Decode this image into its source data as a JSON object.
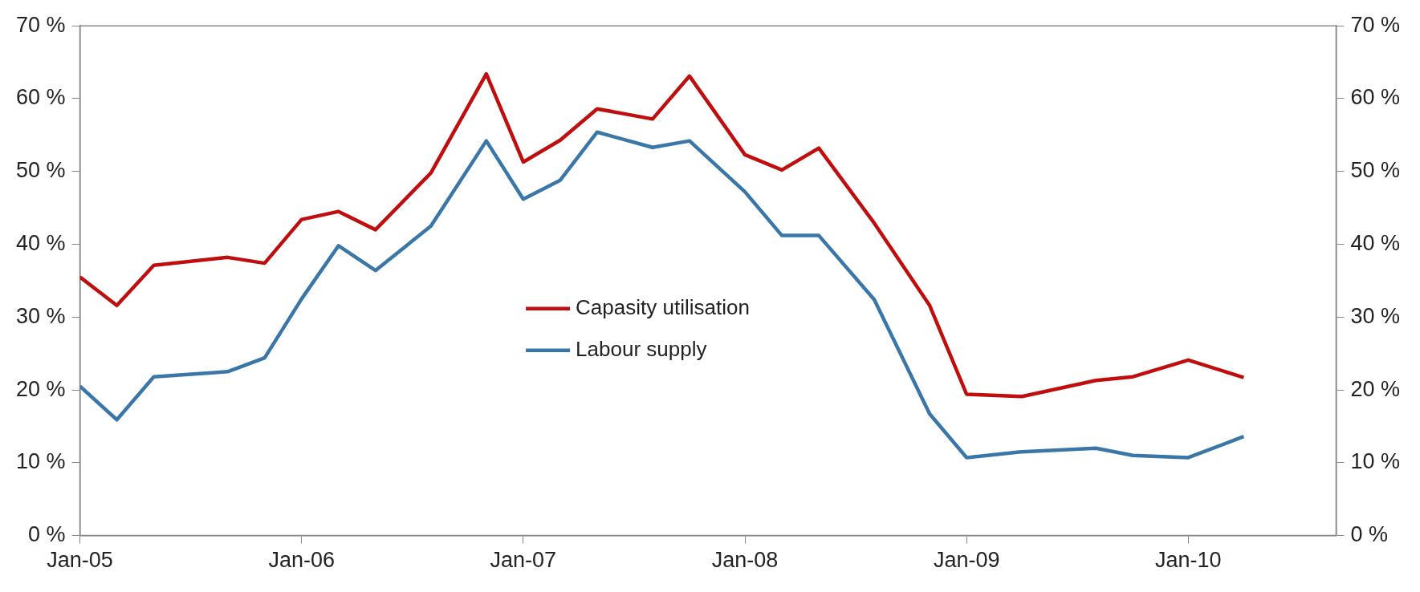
{
  "chart_data": {
    "type": "line",
    "x": [
      "2005-01",
      "2005-03",
      "2005-05",
      "2005-09",
      "2005-11",
      "2006-01",
      "2006-03",
      "2006-05",
      "2006-08",
      "2006-11",
      "2007-01",
      "2007-03",
      "2007-05",
      "2007-08",
      "2007-10",
      "2008-01",
      "2008-03",
      "2008-05",
      "2008-08",
      "2008-11",
      "2009-01",
      "2009-04",
      "2009-08",
      "2009-10",
      "2010-01",
      "2010-04"
    ],
    "series": [
      {
        "name": "Capasity utilisation",
        "color": "#c00d0d",
        "values": [
          35.5,
          31.6,
          37.1,
          38.2,
          37.4,
          43.4,
          44.5,
          42.0,
          49.8,
          63.4,
          51.3,
          54.3,
          58.6,
          57.2,
          63.1,
          52.3,
          50.2,
          53.2,
          42.9,
          31.6,
          19.4,
          19.1,
          21.3,
          21.8,
          24.1,
          21.7
        ]
      },
      {
        "name": "Labour supply",
        "color": "#3a76a8",
        "values": [
          20.5,
          15.9,
          21.8,
          22.5,
          24.4,
          32.5,
          39.8,
          36.4,
          42.5,
          54.2,
          46.2,
          48.8,
          55.4,
          53.3,
          54.2,
          47.2,
          41.2,
          41.2,
          32.4,
          16.7,
          10.7,
          11.5,
          12.0,
          11.0,
          10.7,
          13.6
        ]
      }
    ],
    "xlim": [
      "2005-01",
      "2010-09"
    ],
    "xticks": [
      {
        "value": "2005-01",
        "label": "Jan-05"
      },
      {
        "value": "2006-01",
        "label": "Jan-06"
      },
      {
        "value": "2007-01",
        "label": "Jan-07"
      },
      {
        "value": "2008-01",
        "label": "Jan-08"
      },
      {
        "value": "2009-01",
        "label": "Jan-09"
      },
      {
        "value": "2010-01",
        "label": "Jan-10"
      }
    ],
    "ylim": [
      0,
      70
    ],
    "yticks": [
      {
        "value": 0,
        "label": "0 %"
      },
      {
        "value": 10,
        "label": "10 %"
      },
      {
        "value": 20,
        "label": "20 %"
      },
      {
        "value": 30,
        "label": "30 %"
      },
      {
        "value": 40,
        "label": "40 %"
      },
      {
        "value": 50,
        "label": "50 %"
      },
      {
        "value": 60,
        "label": "60 %"
      },
      {
        "value": 70,
        "label": "70 %"
      }
    ],
    "y2lim": [
      0,
      70
    ],
    "y2ticks": [
      {
        "value": 0,
        "label": "0 %"
      },
      {
        "value": 10,
        "label": "10 %"
      },
      {
        "value": 20,
        "label": "20 %"
      },
      {
        "value": 30,
        "label": "30 %"
      },
      {
        "value": 40,
        "label": "40 %"
      },
      {
        "value": 50,
        "label": "50 %"
      },
      {
        "value": 60,
        "label": "60 %"
      },
      {
        "value": 70,
        "label": "70 %"
      }
    ],
    "legend": "center",
    "grid": false,
    "marker": "none",
    "line_style": "solid"
  }
}
